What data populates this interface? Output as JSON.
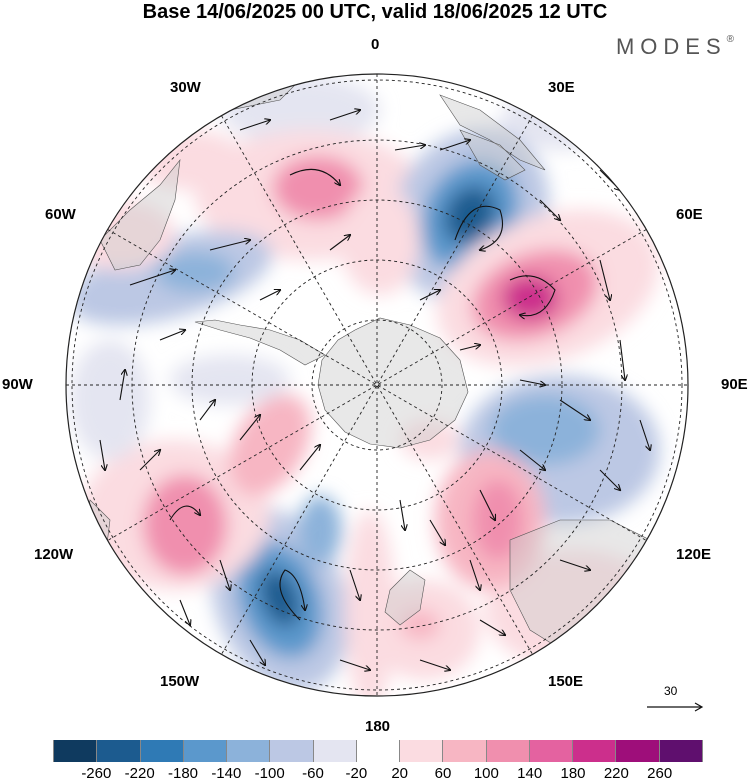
{
  "title": "Base 14/06/2025 00 UTC, valid 18/06/2025 12 UTC",
  "brand": {
    "name": "MODES",
    "mark": "®"
  },
  "longitude_labels": {
    "lon_0": "0",
    "lon_30e": "30E",
    "lon_60e": "60E",
    "lon_90e": "90E",
    "lon_120e": "120E",
    "lon_150e": "150E",
    "lon_180": "180",
    "lon_150w": "150W",
    "lon_120w": "120W",
    "lon_90w": "90W",
    "lon_60w": "60W",
    "lon_30w": "30W"
  },
  "vector_reference": {
    "value": "30"
  },
  "colorbar": {
    "colors": [
      "#0f3a5f",
      "#1c5b8f",
      "#2f7ab5",
      "#5b98cc",
      "#8cb2da",
      "#bcc8e4",
      "#e4e5f1",
      "#ffffff",
      "#fbdce1",
      "#f7b6c3",
      "#f08fae",
      "#e462a0",
      "#cc2f8c",
      "#9e0e7a",
      "#5f0f6e"
    ],
    "labels": [
      "-260",
      "-220",
      "-180",
      "-140",
      "-100",
      "-60",
      "-20",
      "20",
      "60",
      "100",
      "140",
      "180",
      "220",
      "260"
    ]
  }
}
